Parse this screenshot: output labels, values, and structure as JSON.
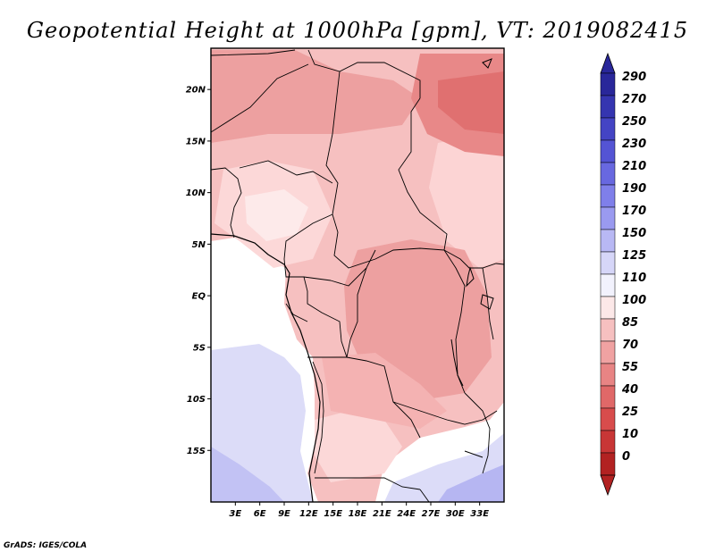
{
  "credit": "GrADS: IGES/COLA",
  "chart_data": {
    "type": "heatmap",
    "title": "Geopotential Height at 1000hPa [gpm], VT: 2019082415",
    "lon_range": [
      0,
      36
    ],
    "lat_range": [
      -20,
      24
    ],
    "x_ticks": [
      {
        "value": 3,
        "label": "3E"
      },
      {
        "value": 6,
        "label": "6E"
      },
      {
        "value": 9,
        "label": "9E"
      },
      {
        "value": 12,
        "label": "12E"
      },
      {
        "value": 15,
        "label": "15E"
      },
      {
        "value": 18,
        "label": "18E"
      },
      {
        "value": 21,
        "label": "21E"
      },
      {
        "value": 24,
        "label": "24E"
      },
      {
        "value": 27,
        "label": "27E"
      },
      {
        "value": 30,
        "label": "30E"
      },
      {
        "value": 33,
        "label": "33E"
      }
    ],
    "y_ticks": [
      {
        "value": 20,
        "label": "20N"
      },
      {
        "value": 15,
        "label": "15N"
      },
      {
        "value": 10,
        "label": "10N"
      },
      {
        "value": 5,
        "label": "5N"
      },
      {
        "value": 0,
        "label": "EQ"
      },
      {
        "value": -5,
        "label": "5S"
      },
      {
        "value": -10,
        "label": "10S"
      },
      {
        "value": -15,
        "label": "15S"
      }
    ],
    "colorbar": {
      "labels": [
        "290",
        "270",
        "250",
        "230",
        "210",
        "190",
        "170",
        "150",
        "125",
        "110",
        "100",
        "85",
        "70",
        "55",
        "40",
        "25",
        "10",
        "0"
      ],
      "colors": [
        "#29279a",
        "#3535b0",
        "#4444c4",
        "#5454d4",
        "#6868e0",
        "#7f7fea",
        "#9a9af0",
        "#b8b8f4",
        "#d6d6f8",
        "#f2f2fd",
        "#fce8e8",
        "#f6c0c0",
        "#f0a2a2",
        "#e88484",
        "#e06868",
        "#d84c4c",
        "#c83636",
        "#b22222"
      ]
    }
  }
}
